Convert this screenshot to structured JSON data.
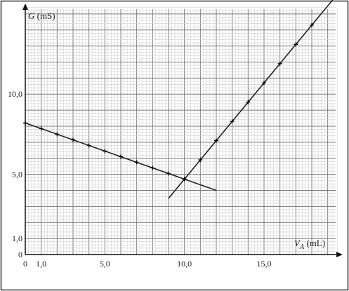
{
  "chart_data": {
    "type": "line",
    "xlabel_var": "V",
    "xlabel_sub": "A",
    "xlabel_unit": " (mL)",
    "ylabel_var": "G",
    "ylabel_unit": " (mS)",
    "xlim": [
      0,
      19.5
    ],
    "ylim": [
      0,
      15.3
    ],
    "grid": true,
    "x_ticks": [
      {
        "v": 0,
        "label": "0"
      },
      {
        "v": 1,
        "label": "1,0"
      },
      {
        "v": 5,
        "label": "5,0"
      },
      {
        "v": 10,
        "label": "10,0"
      },
      {
        "v": 15,
        "label": "15,0"
      }
    ],
    "y_ticks": [
      {
        "v": 0,
        "label": "0"
      },
      {
        "v": 1,
        "label": "1,0"
      },
      {
        "v": 5,
        "label": "5,0"
      },
      {
        "v": 10,
        "label": "10,0"
      }
    ],
    "series": [
      {
        "points": [
          [
            0,
            8.2
          ],
          [
            1,
            7.85
          ],
          [
            2,
            7.5
          ],
          [
            3,
            7.15
          ],
          [
            4,
            6.8
          ],
          [
            5,
            6.45
          ],
          [
            6,
            6.1
          ],
          [
            7,
            5.75
          ],
          [
            8,
            5.4
          ],
          [
            9,
            5.05
          ],
          [
            10,
            4.7
          ]
        ],
        "line": [
          [
            0,
            8.2
          ],
          [
            12,
            4.0
          ]
        ]
      },
      {
        "points": [
          [
            10,
            4.7
          ],
          [
            11,
            5.9
          ],
          [
            12,
            7.1
          ],
          [
            13,
            8.3
          ],
          [
            14,
            9.5
          ],
          [
            15,
            10.7
          ],
          [
            16,
            11.9
          ],
          [
            17,
            13.1
          ],
          [
            18,
            14.3
          ]
        ],
        "line": [
          [
            9,
            3.5
          ],
          [
            19.5,
            16.1
          ]
        ]
      }
    ]
  }
}
